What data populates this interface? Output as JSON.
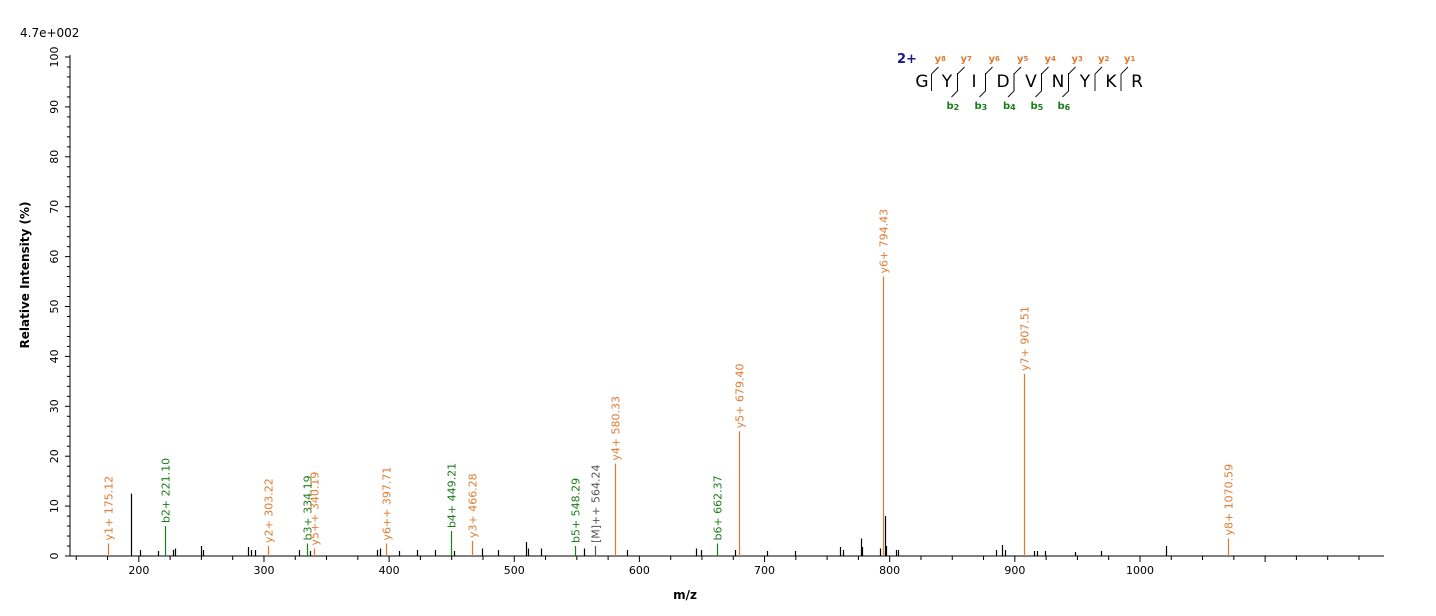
{
  "chart_data": {
    "type": "bar",
    "scale_label": "4.7e+002",
    "xlabel": "m/z",
    "ylabel": "Relative   Intensity (%)",
    "xlim": [
      145,
      1195
    ],
    "ylim": [
      0,
      100
    ],
    "x_ticks": [
      200,
      300,
      400,
      500,
      600,
      700,
      800,
      900,
      1000
    ],
    "y_ticks": [
      0,
      10,
      20,
      30,
      40,
      50,
      60,
      70,
      80,
      90,
      100
    ],
    "labeled_peaks": [
      {
        "mz": 175.12,
        "intensity": 2.5,
        "label": "y1+ 175.12",
        "ion": "y"
      },
      {
        "mz": 221.1,
        "intensity": 6.0,
        "label": "b2+ 221.10",
        "ion": "b"
      },
      {
        "mz": 303.22,
        "intensity": 2.0,
        "label": "y2+ 303.22",
        "ion": "y"
      },
      {
        "mz": 334.19,
        "intensity": 2.5,
        "label": "b3+ 334.19",
        "ion": "b"
      },
      {
        "mz": 340.19,
        "intensity": 1.5,
        "label": "y5++ 340.19",
        "ion": "y"
      },
      {
        "mz": 397.71,
        "intensity": 2.5,
        "label": "y6++ 397.71",
        "ion": "y"
      },
      {
        "mz": 449.21,
        "intensity": 5.0,
        "label": "b4+ 449.21",
        "ion": "b"
      },
      {
        "mz": 466.28,
        "intensity": 3.0,
        "label": "y3+ 466.28",
        "ion": "y"
      },
      {
        "mz": 548.29,
        "intensity": 2.0,
        "label": "b5+ 548.29",
        "ion": "b"
      },
      {
        "mz": 564.24,
        "intensity": 2.0,
        "label": "[M]++ 564.24",
        "ion": "m"
      },
      {
        "mz": 580.33,
        "intensity": 18.5,
        "label": "y4+ 580.33",
        "ion": "y"
      },
      {
        "mz": 662.37,
        "intensity": 2.5,
        "label": "b6+ 662.37",
        "ion": "b"
      },
      {
        "mz": 679.4,
        "intensity": 25.0,
        "label": "y5+ 679.40",
        "ion": "y"
      },
      {
        "mz": 794.43,
        "intensity": 56.0,
        "label": "y6+ 794.43",
        "ion": "y"
      },
      {
        "mz": 907.51,
        "intensity": 36.5,
        "label": "y7+ 907.51",
        "ion": "y"
      },
      {
        "mz": 1070.59,
        "intensity": 3.5,
        "label": "y8+ 1070.59",
        "ion": "y"
      }
    ],
    "unlabeled_peaks": [
      {
        "mz": 193.5,
        "intensity": 12.5
      },
      {
        "mz": 201,
        "intensity": 1.2
      },
      {
        "mz": 215,
        "intensity": 1.0
      },
      {
        "mz": 227,
        "intensity": 1.2
      },
      {
        "mz": 229,
        "intensity": 1.5
      },
      {
        "mz": 250,
        "intensity": 2.0
      },
      {
        "mz": 251,
        "intensity": 1.2
      },
      {
        "mz": 287,
        "intensity": 1.8
      },
      {
        "mz": 290,
        "intensity": 1.2
      },
      {
        "mz": 293,
        "intensity": 1.2
      },
      {
        "mz": 328,
        "intensity": 1.2
      },
      {
        "mz": 337,
        "intensity": 1.0
      },
      {
        "mz": 390,
        "intensity": 1.2
      },
      {
        "mz": 393,
        "intensity": 1.5
      },
      {
        "mz": 408,
        "intensity": 1.0
      },
      {
        "mz": 422,
        "intensity": 1.2
      },
      {
        "mz": 437,
        "intensity": 1.2
      },
      {
        "mz": 452,
        "intensity": 1.0
      },
      {
        "mz": 474,
        "intensity": 1.5
      },
      {
        "mz": 487,
        "intensity": 1.2
      },
      {
        "mz": 509,
        "intensity": 2.8
      },
      {
        "mz": 511,
        "intensity": 1.5
      },
      {
        "mz": 521,
        "intensity": 1.5
      },
      {
        "mz": 556,
        "intensity": 1.5
      },
      {
        "mz": 590,
        "intensity": 1.2
      },
      {
        "mz": 645,
        "intensity": 1.5
      },
      {
        "mz": 649,
        "intensity": 1.2
      },
      {
        "mz": 676,
        "intensity": 1.2
      },
      {
        "mz": 702,
        "intensity": 1.0
      },
      {
        "mz": 724,
        "intensity": 1.0
      },
      {
        "mz": 760,
        "intensity": 1.8
      },
      {
        "mz": 763,
        "intensity": 1.2
      },
      {
        "mz": 777,
        "intensity": 3.5
      },
      {
        "mz": 778,
        "intensity": 1.8
      },
      {
        "mz": 792,
        "intensity": 1.5
      },
      {
        "mz": 796,
        "intensity": 8.0
      },
      {
        "mz": 797,
        "intensity": 2.0
      },
      {
        "mz": 805,
        "intensity": 1.2
      },
      {
        "mz": 807,
        "intensity": 1.2
      },
      {
        "mz": 885,
        "intensity": 1.2
      },
      {
        "mz": 890,
        "intensity": 2.2
      },
      {
        "mz": 892,
        "intensity": 1.2
      },
      {
        "mz": 915,
        "intensity": 1.0
      },
      {
        "mz": 918,
        "intensity": 1.0
      },
      {
        "mz": 924,
        "intensity": 1.0
      },
      {
        "mz": 948,
        "intensity": 0.8
      },
      {
        "mz": 969,
        "intensity": 1.0
      },
      {
        "mz": 1021,
        "intensity": 2.0
      }
    ],
    "colors": {
      "y_ion": "#e07a30",
      "b_ion": "#1a7d1a",
      "precursor": "#555555",
      "unlabeled": "#000000",
      "charge": "#1a1a8c"
    }
  },
  "sequence": {
    "charge_state": "2+",
    "residues": [
      "G",
      "Y",
      "I",
      "D",
      "V",
      "N",
      "Y",
      "K",
      "R"
    ],
    "y_ions": [
      {
        "label": "y",
        "sub": "8"
      },
      {
        "label": "y",
        "sub": "7"
      },
      {
        "label": "y",
        "sub": "6"
      },
      {
        "label": "y",
        "sub": "5"
      },
      {
        "label": "y",
        "sub": "4"
      },
      {
        "label": "y",
        "sub": "3"
      },
      {
        "label": "y",
        "sub": "2"
      },
      {
        "label": "y",
        "sub": "1"
      }
    ],
    "b_ions": [
      {
        "label": "b",
        "sub": "2"
      },
      {
        "label": "b",
        "sub": "3"
      },
      {
        "label": "b",
        "sub": "4"
      },
      {
        "label": "b",
        "sub": "5"
      },
      {
        "label": "b",
        "sub": "6"
      }
    ]
  }
}
